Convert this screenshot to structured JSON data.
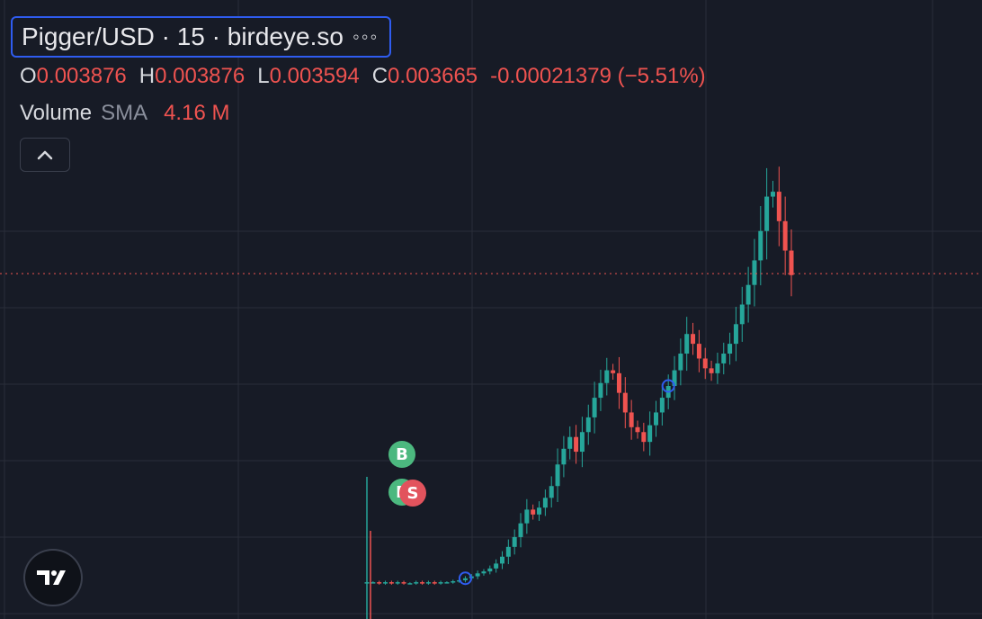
{
  "header": {
    "title": "Pigger/USD · 15 · birdeye.so",
    "more_label": "◦◦◦"
  },
  "ohlc": {
    "o_label": "O",
    "o_value": "0.003876",
    "h_label": "H",
    "h_value": "0.003876",
    "l_label": "L",
    "l_value": "0.003594",
    "c_label": "C",
    "c_value": "0.003665",
    "change": "-0.00021379 (−5.51%)"
  },
  "volume": {
    "name": "Volume",
    "indicator": "SMA",
    "value": "4.16 M"
  },
  "markers": {
    "buy_label": "B",
    "buy2_label": "B",
    "sell_label": "S"
  },
  "icons": {
    "collapse": "chevron-up-icon",
    "logo": "tradingview-logo-icon"
  },
  "colors": {
    "background": "#171b26",
    "up": "#26a69a",
    "down": "#ef5350",
    "grid": "#2a2e39",
    "price_line": "#ef5350",
    "accent": "#2f5cf0"
  },
  "chart_data": {
    "type": "candlestick",
    "interval": "15",
    "source": "birdeye.so",
    "last_close": 0.003665,
    "grid": true,
    "description": "Flat price near launch, then a steep rally with volatility; current bar down 5.51%",
    "series": [
      {
        "name": "price",
        "values": [
          0.00052,
          0.00052,
          0.00051,
          0.00052,
          0.00051,
          0.00052,
          0.00051,
          0.00051,
          0.00052,
          0.00051,
          0.00052,
          0.00051,
          0.00052,
          0.00052,
          0.00053,
          0.00054,
          0.00056,
          0.00058,
          0.00061,
          0.00063,
          0.00066,
          0.00071,
          0.00078,
          0.00088,
          0.00098,
          0.00112,
          0.00126,
          0.00121,
          0.00128,
          0.00138,
          0.0015,
          0.00172,
          0.00188,
          0.002,
          0.00185,
          0.00205,
          0.0022,
          0.0024,
          0.00255,
          0.00268,
          0.00265,
          0.00245,
          0.00225,
          0.0021,
          0.00205,
          0.00195,
          0.00212,
          0.00225,
          0.0024,
          0.00252,
          0.00268,
          0.00285,
          0.00305,
          0.00295,
          0.0028,
          0.0027,
          0.00265,
          0.00275,
          0.00285,
          0.00295,
          0.00315,
          0.00335,
          0.00355,
          0.0038,
          0.0041,
          0.00445,
          0.0045,
          0.0042,
          0.0039,
          0.00365
        ]
      }
    ]
  }
}
